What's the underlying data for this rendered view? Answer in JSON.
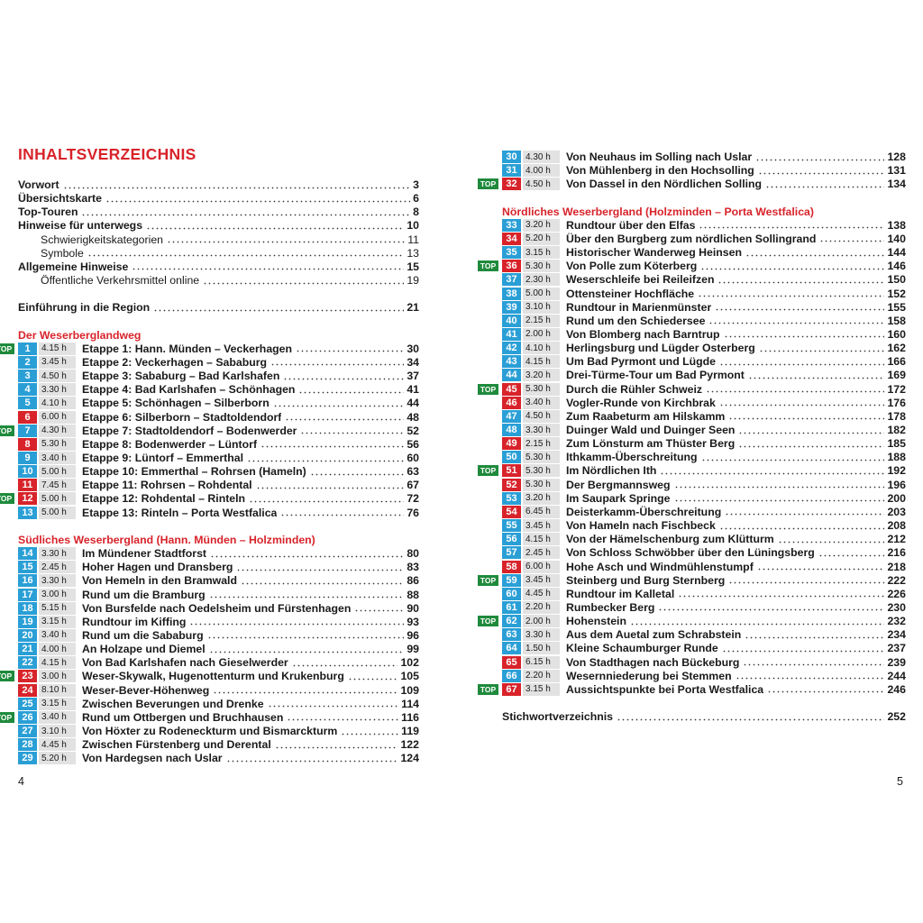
{
  "left_page": {
    "title": "INHALTSVERZEICHNIS",
    "front_matter": [
      [
        {
          "title": "Vorwort",
          "page": "3"
        },
        {
          "title": "Übersichtskarte",
          "page": "6"
        },
        {
          "title": "Top-Touren",
          "page": "8"
        },
        {
          "title": "Hinweise für unterwegs",
          "page": "10",
          "children": [
            {
              "title": "Schwierigkeitskategorien",
              "page": "11"
            },
            {
              "title": "Symbole",
              "page": "13"
            }
          ]
        },
        {
          "title": "Allgemeine Hinweise",
          "page": "15",
          "children": [
            {
              "title": "Öffentliche Verkehrsmittel online",
              "page": "19"
            }
          ]
        }
      ],
      [
        {
          "title": "Einführung in die Region",
          "page": "21"
        }
      ]
    ],
    "sections": [
      {
        "heading": "Der Weserberglandweg",
        "tours": [
          {
            "number": "1",
            "top": "TOP",
            "color": "#2a9fd6",
            "duration": "4.15 h",
            "title": "Etappe 1: Hann. Münden – Veckerhagen",
            "page": "30"
          },
          {
            "number": "2",
            "color": "#2a9fd6",
            "duration": "3.45 h",
            "title": "Etappe 2: Veckerhagen – Sababurg",
            "page": "34"
          },
          {
            "number": "3",
            "color": "#2a9fd6",
            "duration": "4.50 h",
            "title": "Etappe 3: Sababurg – Bad Karlshafen",
            "page": "37"
          },
          {
            "number": "4",
            "color": "#2a9fd6",
            "duration": "3.30 h",
            "title": "Etappe 4: Bad Karlshafen – Schönhagen",
            "page": "41"
          },
          {
            "number": "5",
            "color": "#2a9fd6",
            "duration": "4.10 h",
            "title": "Etappe 5: Schönhagen – Silberborn",
            "page": "44"
          },
          {
            "number": "6",
            "color": "#d8232a",
            "duration": "6.00 h",
            "title": "Etappe 6: Silberborn – Stadtoldendorf",
            "page": "48"
          },
          {
            "number": "7",
            "top": "TOP",
            "color": "#2a9fd6",
            "duration": "4.30 h",
            "title": "Etappe 7: Stadtoldendorf – Bodenwerder",
            "page": "52"
          },
          {
            "number": "8",
            "color": "#d8232a",
            "duration": "5.30 h",
            "title": "Etappe 8: Bodenwerder – Lüntorf",
            "page": "56"
          },
          {
            "number": "9",
            "color": "#2a9fd6",
            "duration": "3.40 h",
            "title": "Etappe 9: Lüntorf – Emmerthal",
            "page": "60"
          },
          {
            "number": "10",
            "color": "#2a9fd6",
            "duration": "5.00 h",
            "title": "Etappe 10: Emmerthal – Rohrsen (Hameln)",
            "page": "63"
          },
          {
            "number": "11",
            "color": "#d8232a",
            "duration": "7.45 h",
            "title": "Etappe 11: Rohrsen – Rohdental",
            "page": "67"
          },
          {
            "number": "12",
            "top": "TOP",
            "color": "#d8232a",
            "duration": "5.00 h",
            "title": "Etappe 12: Rohdental – Rinteln",
            "page": "72"
          },
          {
            "number": "13",
            "color": "#2a9fd6",
            "duration": "5.00 h",
            "title": "Etappe 13: Rinteln – Porta Westfalica",
            "page": "76"
          }
        ]
      },
      {
        "heading": "Südliches Weserbergland (Hann. Münden – Holzminden)",
        "tours": [
          {
            "number": "14",
            "color": "#2a9fd6",
            "duration": "3.30 h",
            "title": "Im Mündener Stadtforst",
            "page": "80"
          },
          {
            "number": "15",
            "color": "#2a9fd6",
            "duration": "2.45 h",
            "title": "Hoher Hagen und Dransberg",
            "page": "83"
          },
          {
            "number": "16",
            "color": "#2a9fd6",
            "duration": "3.30 h",
            "title": "Von Hemeln in den Bramwald",
            "page": "86"
          },
          {
            "number": "17",
            "color": "#2a9fd6",
            "duration": "3.00 h",
            "title": "Rund um die Bramburg",
            "page": "88"
          },
          {
            "number": "18",
            "color": "#2a9fd6",
            "duration": "5.15 h",
            "title": "Von Bursfelde nach Oedelsheim und Fürstenhagen",
            "page": "90"
          },
          {
            "number": "19",
            "color": "#2a9fd6",
            "duration": "3.15 h",
            "title": "Rundtour im Kiffing",
            "page": "93"
          },
          {
            "number": "20",
            "color": "#2a9fd6",
            "duration": "3.40 h",
            "title": "Rund um die Sababurg",
            "page": "96"
          },
          {
            "number": "21",
            "color": "#2a9fd6",
            "duration": "4.00 h",
            "title": "An Holzape und Diemel",
            "page": "99"
          },
          {
            "number": "22",
            "color": "#2a9fd6",
            "duration": "4.15 h",
            "title": "Von Bad Karlshafen nach Gieselwerder",
            "page": "102"
          },
          {
            "number": "23",
            "top": "TOP",
            "color": "#d8232a",
            "duration": "3.00 h",
            "title": "Weser-Skywalk, Hugenottenturm und Krukenburg",
            "page": "105"
          },
          {
            "number": "24",
            "color": "#d8232a",
            "duration": "8.10 h",
            "title": "Weser-Bever-Höhenweg",
            "page": "109"
          },
          {
            "number": "25",
            "color": "#2a9fd6",
            "duration": "3.15 h",
            "title": "Zwischen Beverungen und Drenke",
            "page": "114"
          },
          {
            "number": "26",
            "top": "TOP",
            "color": "#2a9fd6",
            "duration": "3.40 h",
            "title": "Rund um Ottbergen und Bruchhausen",
            "page": "116"
          },
          {
            "number": "27",
            "color": "#2a9fd6",
            "duration": "3.10 h",
            "title": "Von Höxter zu Rodeneckturm und Bismarckturm",
            "page": "119"
          },
          {
            "number": "28",
            "color": "#2a9fd6",
            "duration": "4.45 h",
            "title": "Zwischen Fürstenberg und Derental",
            "page": "122"
          },
          {
            "number": "29",
            "color": "#2a9fd6",
            "duration": "5.20 h",
            "title": "Von Hardegsen nach Uslar",
            "page": "124"
          }
        ]
      }
    ],
    "page_number": "4"
  },
  "right_page": {
    "sections": [
      {
        "tours": [
          {
            "number": "30",
            "color": "#2a9fd6",
            "duration": "4.30 h",
            "title": "Von Neuhaus im Solling nach Uslar",
            "page": "128"
          },
          {
            "number": "31",
            "color": "#2a9fd6",
            "duration": "4.00 h",
            "title": "Von Mühlenberg in den Hochsolling",
            "page": "131"
          },
          {
            "number": "32",
            "top": "TOP",
            "color": "#d8232a",
            "duration": "4.50 h",
            "title": "Von Dassel in den Nördlichen Solling",
            "page": "134"
          }
        ]
      },
      {
        "heading": "Nördliches Weserbergland (Holzminden – Porta Westfalica)",
        "tours": [
          {
            "number": "33",
            "color": "#2a9fd6",
            "duration": "3.20 h",
            "title": "Rundtour über den Elfas",
            "page": "138"
          },
          {
            "number": "34",
            "color": "#d8232a",
            "duration": "5.20 h",
            "title": "Über den Burgberg zum nördlichen Sollingrand",
            "page": "140"
          },
          {
            "number": "35",
            "color": "#2a9fd6",
            "duration": "3.15 h",
            "title": "Historischer Wanderweg Heinsen",
            "page": "144"
          },
          {
            "number": "36",
            "top": "TOP",
            "color": "#d8232a",
            "duration": "5.30 h",
            "title": "Von Polle zum Köterberg",
            "page": "146"
          },
          {
            "number": "37",
            "color": "#2a9fd6",
            "duration": "2.30 h",
            "title": "Weserschleife bei Reileifzen",
            "page": "150"
          },
          {
            "number": "38",
            "color": "#2a9fd6",
            "duration": "5.00 h",
            "title": "Ottensteiner Hochfläche",
            "page": "152"
          },
          {
            "number": "39",
            "color": "#2a9fd6",
            "duration": "3.10 h",
            "title": "Rundtour in Marienmünster",
            "page": "155"
          },
          {
            "number": "40",
            "color": "#2a9fd6",
            "duration": "2.15 h",
            "title": "Rund um den Schiedersee",
            "page": "158"
          },
          {
            "number": "41",
            "color": "#2a9fd6",
            "duration": "2.00 h",
            "title": "Von Blomberg nach Barntrup",
            "page": "160"
          },
          {
            "number": "42",
            "color": "#2a9fd6",
            "duration": "4.10 h",
            "title": "Herlingsburg und Lügder Osterberg",
            "page": "162"
          },
          {
            "number": "43",
            "color": "#2a9fd6",
            "duration": "4.15 h",
            "title": "Um Bad Pyrmont und Lügde",
            "page": "166"
          },
          {
            "number": "44",
            "color": "#2a9fd6",
            "duration": "3.20 h",
            "title": "Drei-Türme-Tour um Bad Pyrmont",
            "page": "169"
          },
          {
            "number": "45",
            "top": "TOP",
            "color": "#d8232a",
            "duration": "5.30 h",
            "title": "Durch die Rühler Schweiz",
            "page": "172"
          },
          {
            "number": "46",
            "color": "#d8232a",
            "duration": "3.40 h",
            "title": "Vogler-Runde von Kirchbrak",
            "page": "176"
          },
          {
            "number": "47",
            "color": "#2a9fd6",
            "duration": "4.50 h",
            "title": "Zum Raabeturm am Hilskamm",
            "page": "178"
          },
          {
            "number": "48",
            "color": "#2a9fd6",
            "duration": "3.30 h",
            "title": "Duinger Wald und Duinger Seen",
            "page": "182"
          },
          {
            "number": "49",
            "color": "#d8232a",
            "duration": "2.15 h",
            "title": "Zum Lönsturm am Thüster Berg",
            "page": "185"
          },
          {
            "number": "50",
            "color": "#2a9fd6",
            "duration": "5.30 h",
            "title": "Ithkamm-Überschreitung",
            "page": "188"
          },
          {
            "number": "51",
            "top": "TOP",
            "color": "#d8232a",
            "duration": "5.30 h",
            "title": "Im Nördlichen Ith",
            "page": "192"
          },
          {
            "number": "52",
            "color": "#d8232a",
            "duration": "5.30 h",
            "title": "Der Bergmannsweg",
            "page": "196"
          },
          {
            "number": "53",
            "color": "#2a9fd6",
            "duration": "3.20 h",
            "title": "Im Saupark Springe",
            "page": "200"
          },
          {
            "number": "54",
            "color": "#d8232a",
            "duration": "6.45 h",
            "title": "Deisterkamm-Überschreitung",
            "page": "203"
          },
          {
            "number": "55",
            "color": "#2a9fd6",
            "duration": "3.45 h",
            "title": "Von Hameln nach Fischbeck",
            "page": "208"
          },
          {
            "number": "56",
            "color": "#2a9fd6",
            "duration": "4.15 h",
            "title": "Von der Hämelschenburg zum Klütturm",
            "page": "212"
          },
          {
            "number": "57",
            "color": "#2a9fd6",
            "duration": "2.45 h",
            "title": "Von Schloss Schwöbber über den Lüningsberg",
            "page": "216"
          },
          {
            "number": "58",
            "color": "#d8232a",
            "duration": "6.00 h",
            "title": "Hohe Asch und Windmühlenstumpf",
            "page": "218"
          },
          {
            "number": "59",
            "top": "TOP",
            "color": "#2a9fd6",
            "duration": "3.45 h",
            "title": "Steinberg und Burg Sternberg",
            "page": "222"
          },
          {
            "number": "60",
            "color": "#2a9fd6",
            "duration": "4.45 h",
            "title": "Rundtour im Kalletal",
            "page": "226"
          },
          {
            "number": "61",
            "color": "#2a9fd6",
            "duration": "2.20 h",
            "title": "Rumbecker Berg",
            "page": "230"
          },
          {
            "number": "62",
            "top": "TOP",
            "color": "#2a9fd6",
            "duration": "2.00 h",
            "title": "Hohenstein",
            "page": "232"
          },
          {
            "number": "63",
            "color": "#2a9fd6",
            "duration": "3.30 h",
            "title": "Aus dem Auetal zum Schrabstein",
            "page": "234"
          },
          {
            "number": "64",
            "color": "#2a9fd6",
            "duration": "1.50 h",
            "title": "Kleine Schaumburger Runde",
            "page": "237"
          },
          {
            "number": "65",
            "color": "#d8232a",
            "duration": "6.15 h",
            "title": "Von Stadthagen nach Bückeburg",
            "page": "239"
          },
          {
            "number": "66",
            "color": "#2a9fd6",
            "duration": "2.20 h",
            "title": "Wesernniederung bei Stemmen",
            "page": "244"
          },
          {
            "number": "67",
            "top": "TOP",
            "color": "#d8232a",
            "duration": "3.15 h",
            "title": "Aussichtspunkte bei Porta Westfalica",
            "page": "246"
          }
        ]
      }
    ],
    "back_matter": [
      {
        "title": "Stichwortverzeichnis",
        "page": "252"
      }
    ],
    "page_number": "5"
  }
}
